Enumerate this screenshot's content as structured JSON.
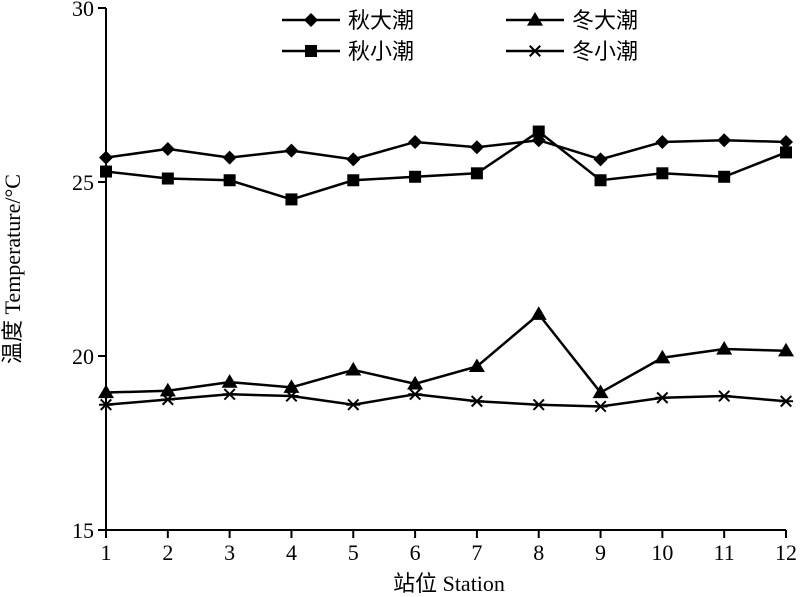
{
  "chart_data": {
    "type": "line",
    "title": "",
    "xlabel": "站位 Station",
    "ylabel": "温度 Temperature/°C",
    "x": [
      1,
      2,
      3,
      4,
      5,
      6,
      7,
      8,
      9,
      10,
      11,
      12
    ],
    "x_tick_labels": [
      "1",
      "2",
      "3",
      "4",
      "5",
      "6",
      "7",
      "8",
      "9",
      "10",
      "11",
      "12"
    ],
    "xlim": [
      1,
      12
    ],
    "ylim": [
      15,
      30
    ],
    "y_ticks": [
      15,
      20,
      25,
      30
    ],
    "y_tick_labels": [
      "15",
      "20",
      "25",
      "30"
    ],
    "grid": false,
    "legend_position": "top",
    "series": [
      {
        "name": "秋大潮",
        "marker": "diamond",
        "values": [
          25.7,
          25.95,
          25.7,
          25.9,
          25.65,
          26.15,
          26.0,
          26.2,
          25.65,
          26.15,
          26.2,
          26.15
        ]
      },
      {
        "name": "冬大潮",
        "marker": "triangle",
        "values": [
          18.95,
          19.0,
          19.25,
          19.1,
          19.6,
          19.2,
          19.7,
          21.2,
          18.95,
          19.95,
          20.2,
          20.15
        ]
      },
      {
        "name": "秋小潮",
        "marker": "square",
        "values": [
          25.3,
          25.1,
          25.05,
          24.5,
          25.05,
          25.15,
          25.25,
          26.45,
          25.05,
          25.25,
          25.15,
          25.85
        ]
      },
      {
        "name": "冬小潮",
        "marker": "asterisk",
        "values": [
          18.6,
          18.75,
          18.9,
          18.85,
          18.6,
          18.9,
          18.7,
          18.6,
          18.55,
          18.8,
          18.85,
          18.7
        ]
      }
    ]
  }
}
